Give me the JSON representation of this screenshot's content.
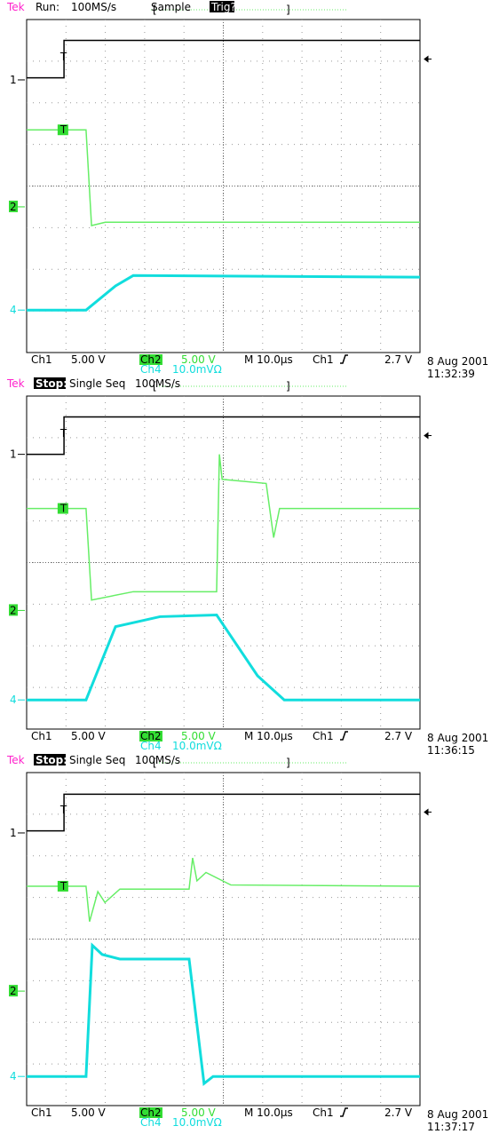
{
  "chart_data": [
    {
      "type": "line",
      "header": {
        "brand": "Tek",
        "status": "Run:",
        "status_inverted": false,
        "rate": "100MS/s",
        "mode": "Sample",
        "trig_state": "Trig?"
      },
      "footer": {
        "ch1_scale": "5.00 V",
        "ch2_scale": "5.00 V",
        "ch4_scale": "10.0mVΩ",
        "timebase": "M 10.0µs",
        "trigger_source": "Ch1",
        "trigger_level": "2.7 V",
        "date": "8 Aug 2001",
        "time": "11:32:39"
      },
      "xlim": [
        0,
        10
      ],
      "ylim": [
        0,
        8
      ],
      "grid": true,
      "series": [
        {
          "name": "Ch1",
          "color": "#000000",
          "x": [
            0,
            0.95,
            0.95,
            10
          ],
          "values": [
            6.6,
            6.6,
            7.5,
            7.5
          ]
        },
        {
          "name": "Ch2",
          "color": "#66ee66",
          "x": [
            0,
            1.51,
            1.65,
            2.0,
            10
          ],
          "values": [
            5.35,
            5.35,
            3.05,
            3.13,
            3.13
          ]
        },
        {
          "name": "Ch4",
          "color": "#11dddd",
          "x": [
            0,
            1.51,
            2.26,
            2.71,
            10
          ],
          "values": [
            1.02,
            1.02,
            1.6,
            1.85,
            1.81
          ]
        }
      ],
      "markers": [
        {
          "label": "1",
          "y": 6.55,
          "color": "#000000",
          "box": false
        },
        {
          "label": "2",
          "y": 3.5,
          "color": "#33dd33",
          "box": true
        },
        {
          "label": "4",
          "y": 1.02,
          "color": "#11dddd",
          "box": false
        }
      ],
      "trigger_marks": [
        {
          "label": "T",
          "x": 0.9,
          "y": 7.1,
          "color": "#000000",
          "box": false
        },
        {
          "label": "T",
          "x": 0.9,
          "y": 5.35,
          "color": "#33dd33",
          "box": true
        }
      ],
      "trigger_arrow": 7.05
    },
    {
      "type": "line",
      "header": {
        "brand": "Tek",
        "status": "Stop:",
        "status_inverted": true,
        "rate": "100MS/s",
        "mode": "Single Seq"
      },
      "footer": {
        "ch1_scale": "5.00 V",
        "ch2_scale": "5.00 V",
        "ch4_scale": "10.0mVΩ",
        "timebase": "M 10.0µs",
        "trigger_source": "Ch1",
        "trigger_level": "2.7 V",
        "date": "8 Aug 2001",
        "time": "11:36:15"
      },
      "xlim": [
        0,
        10
      ],
      "ylim": [
        0,
        8
      ],
      "grid": true,
      "series": [
        {
          "name": "Ch1",
          "color": "#000000",
          "x": [
            0,
            0.95,
            0.95,
            10
          ],
          "values": [
            6.6,
            6.6,
            7.5,
            7.5
          ]
        },
        {
          "name": "Ch2",
          "color": "#66ee66",
          "x": [
            0,
            1.51,
            1.65,
            2.71,
            4.83,
            4.9,
            4.97,
            6.09,
            6.28,
            6.43,
            10
          ],
          "values": [
            5.3,
            5.3,
            3.1,
            3.3,
            3.3,
            6.6,
            6.0,
            5.9,
            4.6,
            5.3,
            5.3
          ]
        },
        {
          "name": "Ch4",
          "color": "#11dddd",
          "x": [
            0,
            1.51,
            2.26,
            3.39,
            4.83,
            5.87,
            6.55,
            10
          ],
          "values": [
            0.7,
            0.7,
            2.46,
            2.7,
            2.74,
            1.28,
            0.7,
            0.7
          ]
        }
      ],
      "markers": [
        {
          "label": "1",
          "y": 6.6,
          "color": "#000000",
          "box": false
        },
        {
          "label": "2",
          "y": 2.85,
          "color": "#33dd33",
          "box": true
        },
        {
          "label": "4",
          "y": 0.7,
          "color": "#11dddd",
          "box": false
        }
      ],
      "trigger_marks": [
        {
          "label": "T",
          "x": 0.9,
          "y": 7.1,
          "color": "#000000",
          "box": false
        },
        {
          "label": "T",
          "x": 0.9,
          "y": 5.3,
          "color": "#33dd33",
          "box": true
        }
      ],
      "trigger_arrow": 7.05
    },
    {
      "type": "line",
      "header": {
        "brand": "Tek",
        "status": "Stop:",
        "status_inverted": true,
        "rate": "100MS/s",
        "mode": "Single Seq"
      },
      "footer": {
        "ch1_scale": "5.00 V",
        "ch2_scale": "5.00 V",
        "ch4_scale": "10.0mVΩ",
        "timebase": "M 10.0µs",
        "trigger_source": "Ch1",
        "trigger_level": "2.7 V",
        "date": "8 Aug 2001",
        "time": "11:37:17"
      },
      "xlim": [
        0,
        10
      ],
      "ylim": [
        0,
        8
      ],
      "grid": true,
      "series": [
        {
          "name": "Ch1",
          "color": "#000000",
          "x": [
            0,
            0.95,
            0.95,
            10
          ],
          "values": [
            6.6,
            6.6,
            7.48,
            7.48
          ]
        },
        {
          "name": "Ch2",
          "color": "#66ee66",
          "x": [
            0,
            1.51,
            1.6,
            1.81,
            1.99,
            2.37,
            4.13,
            4.22,
            4.33,
            4.56,
            5.19,
            10
          ],
          "values": [
            5.27,
            5.27,
            4.42,
            5.14,
            4.88,
            5.2,
            5.2,
            5.95,
            5.4,
            5.6,
            5.3,
            5.27
          ]
        },
        {
          "name": "Ch4",
          "color": "#11dddd",
          "x": [
            0,
            1.51,
            1.67,
            1.92,
            2.37,
            4.13,
            4.51,
            4.74,
            10
          ],
          "values": [
            0.7,
            0.7,
            3.85,
            3.63,
            3.52,
            3.52,
            0.53,
            0.7,
            0.7
          ]
        }
      ],
      "markers": [
        {
          "label": "1",
          "y": 6.55,
          "color": "#000000",
          "box": false
        },
        {
          "label": "2",
          "y": 2.75,
          "color": "#33dd33",
          "box": true
        },
        {
          "label": "4",
          "y": 0.7,
          "color": "#11dddd",
          "box": false
        }
      ],
      "trigger_marks": [
        {
          "label": "T",
          "x": 0.9,
          "y": 7.1,
          "color": "#000000",
          "box": false
        },
        {
          "label": "T",
          "x": 0.9,
          "y": 5.27,
          "color": "#33dd33",
          "box": true
        }
      ],
      "trigger_arrow": 7.05
    }
  ]
}
